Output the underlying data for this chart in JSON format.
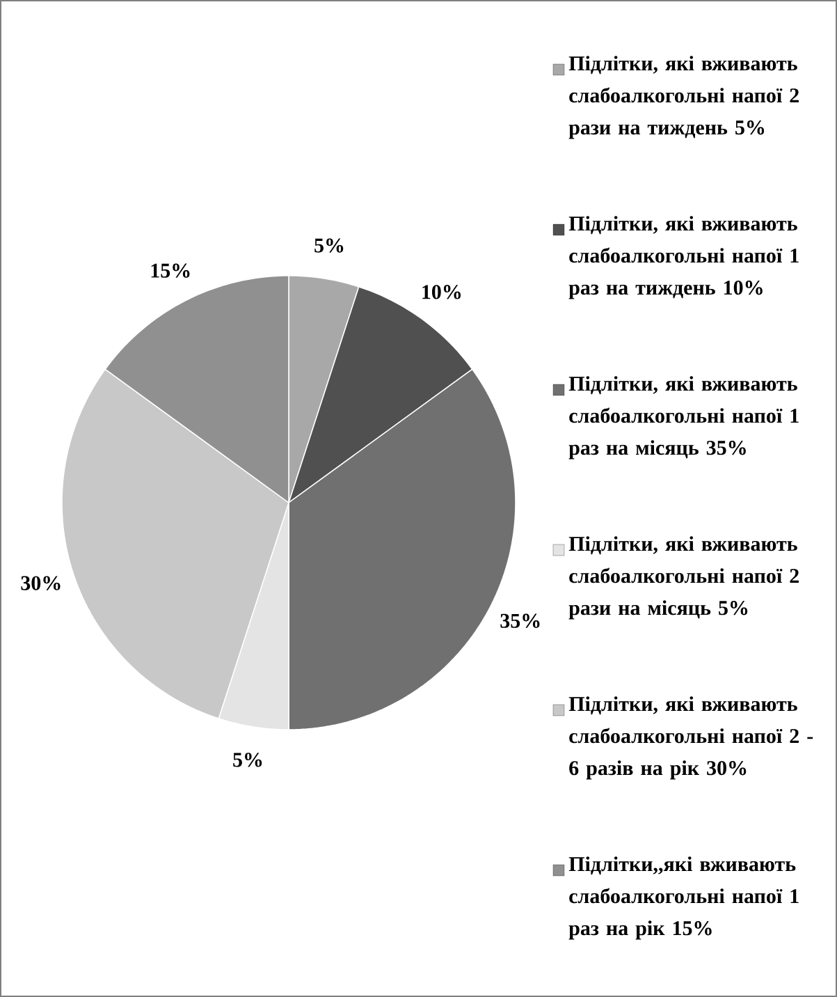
{
  "chart_data": {
    "type": "pie",
    "categories": [
      "Підлітки, які вживають слабоалкогольні напої 2 рази на тиждень  5%",
      "Підлітки, які вживають слабоалкогольні напої 1 раз на тиждень  10%",
      "Підлітки, які вживають слабоалкогольні напої 1 раз на місяць 35%",
      "Підлітки, які вживають слабоалкогольні напої 2 рази на місяць 5%",
      "Підлітки, які вживають слабоалкогольні напої 2 - 6 разів на рік 30%",
      "Підлітки,,які вживають слабоалкогольні напої 1 раз на рік 15%"
    ],
    "values": [
      5,
      10,
      35,
      5,
      30,
      15
    ],
    "colors": [
      "#a8a8a8",
      "#505050",
      "#707070",
      "#e4e4e4",
      "#c8c8c8",
      "#909090"
    ],
    "value_labels": [
      "5%",
      "10%",
      "35%",
      "5%",
      "30%",
      "15%"
    ],
    "legend": "right"
  }
}
